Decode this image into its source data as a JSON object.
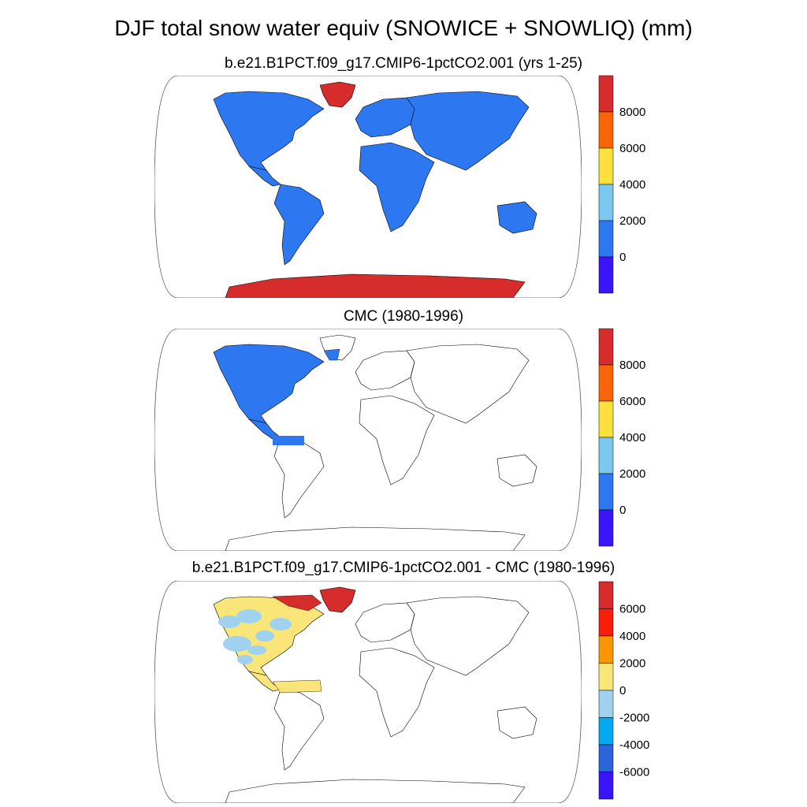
{
  "figure": {
    "title": "DJF total snow water equiv (SNOWICE + SNOWLIQ) (mm)"
  },
  "panels": [
    {
      "title": "b.e21.B1PCT.f09_g17.CMIP6-1pctCO2.001 (yrs 1-25)",
      "coverage": "global",
      "colorbar": {
        "labels": [
          "8000",
          "6000",
          "4000",
          "2000",
          "0"
        ],
        "colors": [
          "#d62c2c",
          "#fa6405",
          "#fae13c",
          "#78c8f0",
          "#2d78f0",
          "#3c14fa"
        ]
      }
    },
    {
      "title": "CMC (1980-1996)",
      "coverage": "north-america",
      "colorbar": {
        "labels": [
          "8000",
          "6000",
          "4000",
          "2000",
          "0"
        ],
        "colors": [
          "#d62c2c",
          "#fa6405",
          "#fae13c",
          "#78c8f0",
          "#2d78f0",
          "#3c14fa"
        ]
      }
    },
    {
      "title": "b.e21.B1PCT.f09_g17.CMIP6-1pctCO2.001 - CMC (1980-1996)",
      "coverage": "difference",
      "colorbar": {
        "labels": [
          "6000",
          "4000",
          "2000",
          "0",
          "-2000",
          "-4000",
          "-6000"
        ],
        "colors": [
          "#d62c2c",
          "#fa1e0a",
          "#fa9600",
          "#fae678",
          "#a0d2f0",
          "#00aaf0",
          "#2d64dc",
          "#3c14fa"
        ]
      }
    }
  ]
}
